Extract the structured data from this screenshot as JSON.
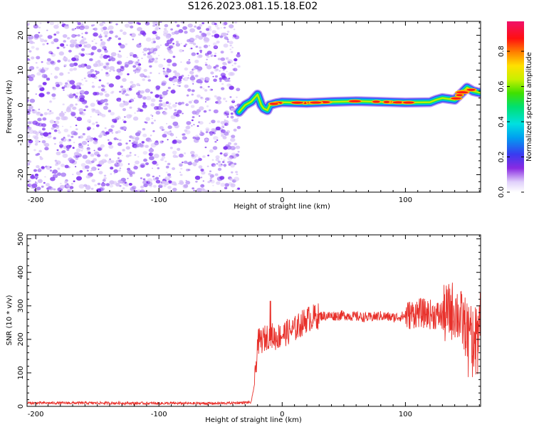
{
  "title": "S126.2023.081.15.18.E02",
  "colors": {
    "snr_line": "#e8302a",
    "noise_purple": "#7a2cf0",
    "noise_light": "#d8c4f8",
    "frame": "#000000"
  },
  "chart_data": [
    {
      "type": "heatmap",
      "xlabel": "Height of straight line (km)",
      "ylabel": "Frequency (Hz)",
      "xlim": [
        -207,
        161
      ],
      "ylim": [
        -25,
        24
      ],
      "xticks": [
        -200,
        -100,
        0,
        100
      ],
      "yticks": [
        -20,
        -10,
        0,
        10,
        20
      ],
      "grid": false,
      "noise_region_x": [
        -207,
        -35
      ],
      "signal_track": {
        "x": [
          -35,
          -30,
          -25,
          -20,
          -17,
          -15,
          -12,
          -10,
          -5,
          0,
          20,
          40,
          60,
          80,
          100,
          120,
          125,
          130,
          140,
          150,
          155,
          161
        ],
        "y": [
          -2,
          0,
          1,
          3,
          0,
          -1,
          -1.5,
          0,
          0.5,
          0.8,
          0.6,
          0.9,
          1.1,
          0.9,
          0.7,
          0.8,
          1.5,
          2,
          1.5,
          5,
          4,
          3.5
        ]
      },
      "colorbar": {
        "label": "Normalized spectral amplitude",
        "ticks": [
          "0.0",
          "0.2",
          "0.4",
          "0.6",
          "0.8"
        ],
        "range": [
          0,
          0.97
        ]
      }
    },
    {
      "type": "line",
      "xlabel": "Height of straight line (km)",
      "ylabel": "SNR (10 * v/v)",
      "xlim": [
        -207,
        161
      ],
      "ylim": [
        0,
        512
      ],
      "xticks": [
        -200,
        -100,
        0,
        100
      ],
      "yticks": [
        0,
        100,
        200,
        300,
        400,
        500
      ],
      "grid": false,
      "series": [
        {
          "x": [
            -207,
            -150,
            -100,
            -50,
            -25,
            -22,
            -20,
            -15,
            -10,
            -5,
            0,
            10,
            20,
            30,
            40,
            50,
            60,
            70,
            80,
            90,
            100,
            110,
            120,
            130,
            140,
            150,
            155,
            161
          ],
          "y": [
            10,
            10,
            9,
            9,
            12,
            80,
            190,
            200,
            215,
            205,
            215,
            230,
            260,
            270,
            270,
            272,
            268,
            265,
            270,
            265,
            270,
            280,
            275,
            270,
            290,
            230,
            200,
            270
          ]
        }
      ]
    }
  ]
}
